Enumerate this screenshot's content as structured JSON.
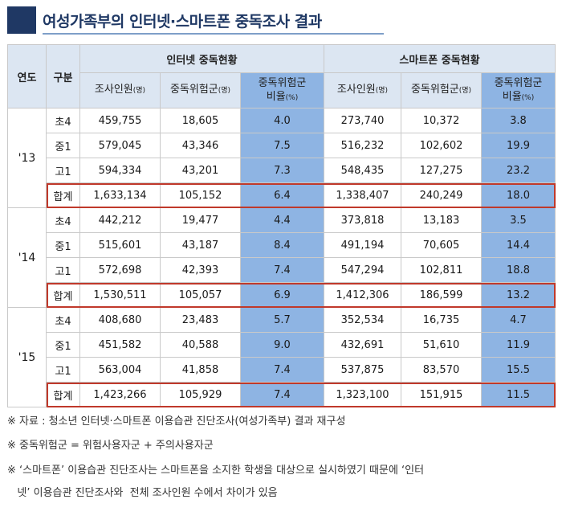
{
  "title": "여성가족부의 인터넷·스마트폰 중독조사 결과",
  "header": {
    "year": "연도",
    "category": "구분",
    "internet_group": "인터넷 중독현황",
    "smartphone_group": "스마트폰 중독현황",
    "survey_count": "조사인원",
    "risk_group": "중독위험군",
    "ratio_line1": "중독위험군",
    "ratio_line2": "비율",
    "unit_person": "(명)",
    "unit_percent": "(%)"
  },
  "rows": [
    {
      "year": "'13",
      "grade": "초4",
      "net_n": "459,755",
      "net_risk": "18,605",
      "net_ratio": "4.0",
      "sp_n": "273,740",
      "sp_risk": "10,372",
      "sp_ratio": "3.8"
    },
    {
      "year": "",
      "grade": "중1",
      "net_n": "579,045",
      "net_risk": "43,346",
      "net_ratio": "7.5",
      "sp_n": "516,232",
      "sp_risk": "102,602",
      "sp_ratio": "19.9"
    },
    {
      "year": "",
      "grade": "고1",
      "net_n": "594,334",
      "net_risk": "43,201",
      "net_ratio": "7.3",
      "sp_n": "548,435",
      "sp_risk": "127,275",
      "sp_ratio": "23.2"
    },
    {
      "year": "",
      "grade": "합계",
      "net_n": "1,633,134",
      "net_risk": "105,152",
      "net_ratio": "6.4",
      "sp_n": "1,338,407",
      "sp_risk": "240,249",
      "sp_ratio": "18.0"
    },
    {
      "year": "'14",
      "grade": "초4",
      "net_n": "442,212",
      "net_risk": "19,477",
      "net_ratio": "4.4",
      "sp_n": "373,818",
      "sp_risk": "13,183",
      "sp_ratio": "3.5"
    },
    {
      "year": "",
      "grade": "중1",
      "net_n": "515,601",
      "net_risk": "43,187",
      "net_ratio": "8.4",
      "sp_n": "491,194",
      "sp_risk": "70,605",
      "sp_ratio": "14.4"
    },
    {
      "year": "",
      "grade": "고1",
      "net_n": "572,698",
      "net_risk": "42,393",
      "net_ratio": "7.4",
      "sp_n": "547,294",
      "sp_risk": "102,811",
      "sp_ratio": "18.8"
    },
    {
      "year": "",
      "grade": "합계",
      "net_n": "1,530,511",
      "net_risk": "105,057",
      "net_ratio": "6.9",
      "sp_n": "1,412,306",
      "sp_risk": "186,599",
      "sp_ratio": "13.2"
    },
    {
      "year": "'15",
      "grade": "초4",
      "net_n": "408,680",
      "net_risk": "23,483",
      "net_ratio": "5.7",
      "sp_n": "352,534",
      "sp_risk": "16,735",
      "sp_ratio": "4.7"
    },
    {
      "year": "",
      "grade": "중1",
      "net_n": "451,582",
      "net_risk": "40,588",
      "net_ratio": "9.0",
      "sp_n": "432,691",
      "sp_risk": "51,610",
      "sp_ratio": "11.9"
    },
    {
      "year": "",
      "grade": "고1",
      "net_n": "563,004",
      "net_risk": "41,858",
      "net_ratio": "7.4",
      "sp_n": "537,875",
      "sp_risk": "83,570",
      "sp_ratio": "15.5"
    },
    {
      "year": "",
      "grade": "합계",
      "net_n": "1,423,266",
      "net_risk": "105,929",
      "net_ratio": "7.4",
      "sp_n": "1,323,100",
      "sp_risk": "151,915",
      "sp_ratio": "11.5"
    }
  ],
  "notes": [
    "※ 자료 : 청소년 인터넷·스마트폰 이용습관 진단조사(여성가족부) 결과 재구성",
    "※ 중독위험군 = 위험사용자군 + 주의사용자군",
    "※ ‘스마트폰’ 이용습관 진단조사는 스마트폰을 소지한 학생을 대상으로 실시하였기 때문에 ‘인터",
    "   넷’ 이용습관 진단조사와  전체 조사인원 수에서 차이가 있음"
  ],
  "colors": {
    "title_navy": "#1f3864",
    "header_light": "#dce6f2",
    "ratio_highlight": "#8eb4e3",
    "total_outline": "#c0392b"
  }
}
